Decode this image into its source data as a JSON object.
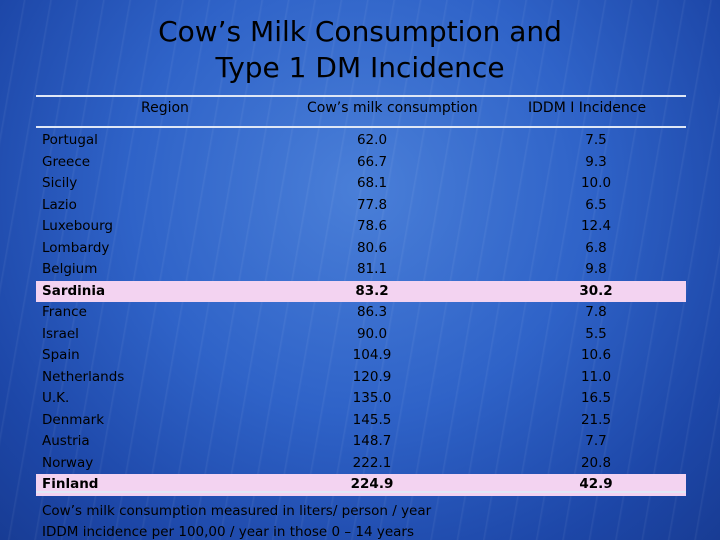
{
  "title": {
    "line1": "Cow’s Milk Consumption and",
    "line2": "Type 1 DM Incidence"
  },
  "headers": {
    "region": "Region",
    "milk": "Cow’s milk consumption",
    "iddm": "IDDM I Incidence"
  },
  "rows": [
    {
      "region": "Portugal",
      "milk": "62.0",
      "iddm": "7.5",
      "highlight": false
    },
    {
      "region": "Greece",
      "milk": "66.7",
      "iddm": "9.3",
      "highlight": false
    },
    {
      "region": "Sicily",
      "milk": "68.1",
      "iddm": "10.0",
      "highlight": false
    },
    {
      "region": "Lazio",
      "milk": "77.8",
      "iddm": "6.5",
      "highlight": false
    },
    {
      "region": "Luxebourg",
      "milk": "78.6",
      "iddm": "12.4",
      "highlight": false
    },
    {
      "region": "Lombardy",
      "milk": "80.6",
      "iddm": "6.8",
      "highlight": false
    },
    {
      "region": "Belgium",
      "milk": "81.1",
      "iddm": "9.8",
      "highlight": false
    },
    {
      "region": "Sardinia",
      "milk": "83.2",
      "iddm": "30.2",
      "highlight": true
    },
    {
      "region": "France",
      "milk": "86.3",
      "iddm": "7.8",
      "highlight": false
    },
    {
      "region": "Israel",
      "milk": "90.0",
      "iddm": "5.5",
      "highlight": false
    },
    {
      "region": "Spain",
      "milk": "104.9",
      "iddm": "10.6",
      "highlight": false
    },
    {
      "region": "Netherlands",
      "milk": "120.9",
      "iddm": "11.0",
      "highlight": false
    },
    {
      "region": "U.K.",
      "milk": "135.0",
      "iddm": "16.5",
      "highlight": false
    },
    {
      "region": "Denmark",
      "milk": "145.5",
      "iddm": "21.5",
      "highlight": false
    },
    {
      "region": "Austria",
      "milk": "148.7",
      "iddm": "7.7",
      "highlight": false
    },
    {
      "region": "Norway",
      "milk": "222.1",
      "iddm": "20.8",
      "highlight": false
    },
    {
      "region": "Finland",
      "milk": "224.9",
      "iddm": "42.9",
      "highlight": true
    }
  ],
  "footnotes": {
    "line1": "Cow’s milk consumption measured in liters/ person / year",
    "line2": "IDDM incidence per 100,00 / year in those 0 – 14 years"
  },
  "colors": {
    "background": "#2f63c8",
    "highlight": "#f3d3f1"
  }
}
